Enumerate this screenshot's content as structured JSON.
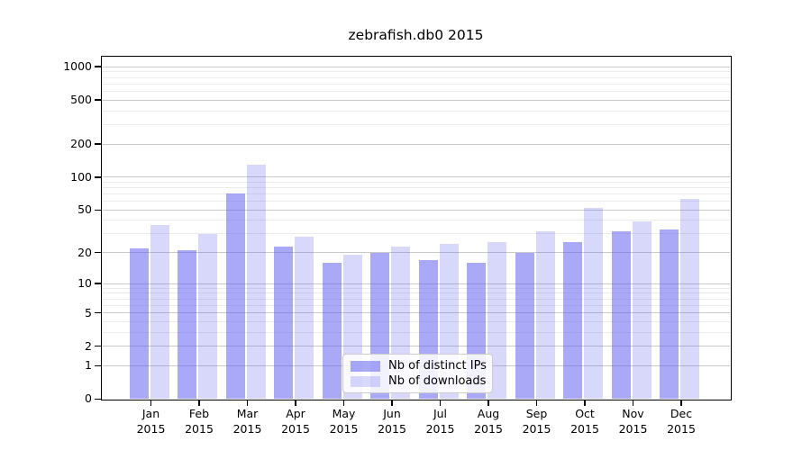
{
  "title": "zebrafish.db0 2015",
  "colors": {
    "ips_bar": "rgba(92,92,240,0.53)",
    "downloads_bar": "rgba(92,92,240,0.24)",
    "ips_bar_rendered_hex": "#a9a9f5",
    "downloads_bar_rendered_hex": "#d8d8fa",
    "grid_major": "#c9c9c9",
    "grid_minor": "#ebebeb",
    "axis": "#000000",
    "legend_border": "#cccccc"
  },
  "legend": {
    "position": "lower center",
    "items": [
      {
        "key": "ips_bar",
        "label": "Nb of distinct IPs"
      },
      {
        "key": "downloads_bar",
        "label": "Nb of downloads"
      }
    ]
  },
  "y_axis": {
    "scale": "log10(value+1)",
    "tick_labels": [
      "1000",
      "500",
      "200",
      "100",
      "50",
      "20",
      "10",
      "5",
      "2",
      "1",
      "0"
    ],
    "tick_values": [
      1000,
      500,
      200,
      100,
      50,
      20,
      10,
      5,
      2,
      1,
      0
    ],
    "minor_gridline_values": [
      3,
      4,
      6,
      7,
      8,
      9,
      30,
      40,
      60,
      70,
      80,
      90,
      300,
      400,
      600,
      700,
      800,
      900
    ]
  },
  "chart_data": {
    "type": "bar",
    "title": "zebrafish.db0 2015",
    "xlabel": "",
    "ylabel": "",
    "year": "2015",
    "categories": [
      "Jan",
      "Feb",
      "Mar",
      "Apr",
      "May",
      "Jun",
      "Jul",
      "Aug",
      "Sep",
      "Oct",
      "Nov",
      "Dec"
    ],
    "series": [
      {
        "name": "Nb of distinct IPs",
        "values": [
          22,
          21,
          71,
          23,
          16,
          20,
          17,
          16,
          20,
          25,
          32,
          33
        ]
      },
      {
        "name": "Nb of downloads",
        "values": [
          36,
          30,
          130,
          28,
          19,
          23,
          24,
          25,
          32,
          52,
          39,
          63
        ]
      }
    ],
    "ylim": [
      0,
      1236
    ],
    "yscale": "log10(count+1)",
    "grid": true,
    "legend_position": "lower center"
  }
}
